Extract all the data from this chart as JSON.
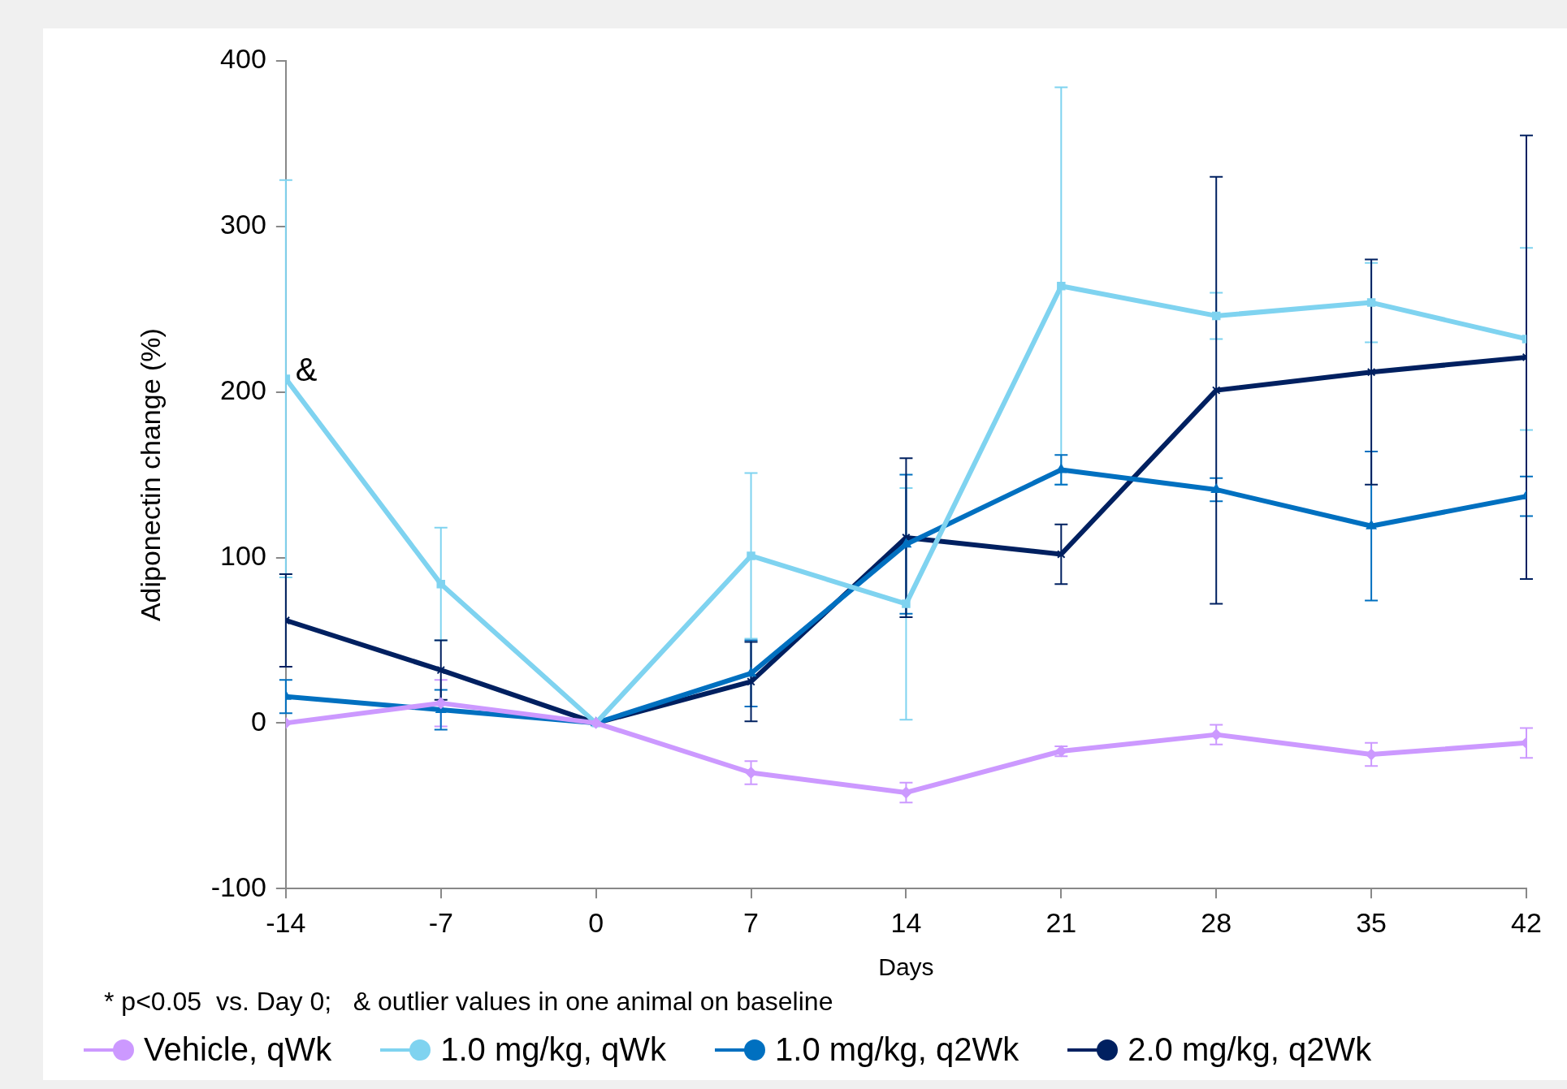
{
  "chart_data": {
    "type": "line",
    "xlabel": "Days",
    "ylabel": "Adiponectin change (%)",
    "x": [
      -14,
      -7,
      0,
      7,
      14,
      21,
      28,
      35,
      42
    ],
    "xlim": [
      -14,
      42
    ],
    "xticks": [
      -14,
      -7,
      0,
      7,
      14,
      21,
      28,
      35,
      42
    ],
    "ylim": [
      -100,
      400
    ],
    "yticks": [
      -100,
      0,
      100,
      200,
      300,
      400
    ],
    "grid": false,
    "legend": "bottom",
    "line_style": "solid",
    "series": [
      {
        "name": "Vehicle, qWk",
        "color": "#cc99ff",
        "marker": "diamond",
        "values": [
          0,
          12,
          0,
          -30,
          -42,
          -17,
          -7,
          -19,
          -12
        ],
        "errors": [
          null,
          14,
          null,
          7,
          6,
          3,
          6,
          7,
          9
        ]
      },
      {
        "name": "1.0 mg/kg, qWk",
        "color": "#7fd3f0",
        "marker": "square",
        "values": [
          208,
          84,
          0,
          101,
          72,
          264,
          246,
          254,
          232
        ],
        "errors": [
          120,
          34,
          null,
          50,
          70,
          120,
          14,
          24,
          55
        ]
      },
      {
        "name": "1.0 mg/kg, q2Wk",
        "color": "#0070c0",
        "marker": "triangle",
        "values": [
          16,
          8,
          0,
          30,
          108,
          153,
          141,
          119,
          137
        ],
        "errors": [
          10,
          12,
          null,
          20,
          42,
          9,
          7,
          45,
          12
        ]
      },
      {
        "name": "2.0 mg/kg, q2Wk",
        "color": "#002060",
        "marker": "cross",
        "values": [
          62,
          32,
          0,
          25,
          112,
          102,
          201,
          212,
          221
        ],
        "errors": [
          28,
          18,
          null,
          24,
          48,
          18,
          129,
          68,
          134
        ]
      }
    ],
    "annotations": [
      {
        "text": "&",
        "x": -14,
        "y": 208
      },
      "* p<0.05  vs. Day 0;   & outlier values in one animal on baseline"
    ]
  }
}
